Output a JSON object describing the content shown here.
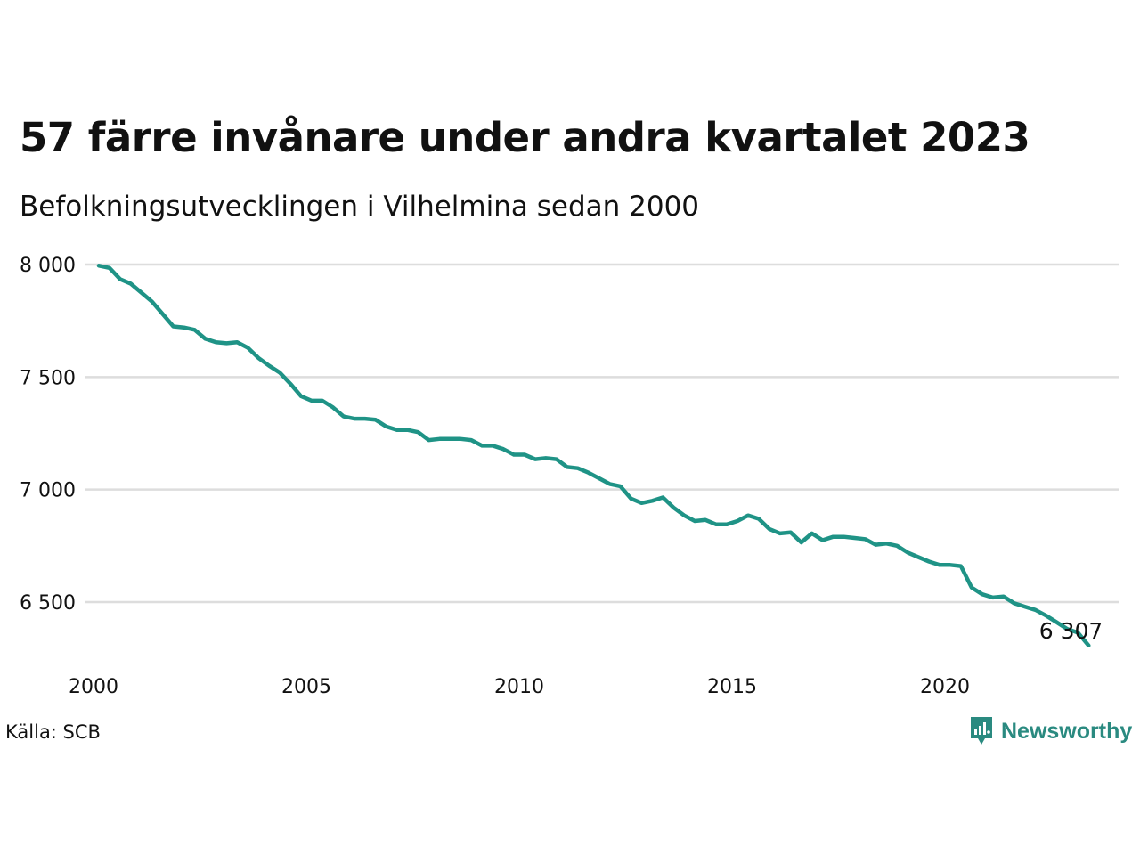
{
  "header": {
    "title": "57 färre invånare under andra kvartalet 2023",
    "subtitle": "Befolkningsutvecklingen i Vilhelmina sedan 2000"
  },
  "footer": {
    "source": "Källa: SCB",
    "brand": "Newsworthy"
  },
  "colors": {
    "line": "#1f9386",
    "grid": "#dddddd",
    "brand": "#2a8a80"
  },
  "chart_data": {
    "type": "line",
    "x_axis": {
      "type": "time",
      "min": 2000,
      "max": 2024,
      "ticks": [
        "2000",
        "2005",
        "2010",
        "2015",
        "2020"
      ]
    },
    "y_axis": {
      "min": 6300,
      "max": 8000,
      "ticks": [
        8000,
        7500,
        7000,
        6500
      ],
      "tick_labels": [
        "8 000",
        "7 500",
        "7 000",
        "6 500"
      ]
    },
    "grid": "horizontal",
    "end_label": "6 307",
    "series": [
      {
        "x": [
          "2000-Q1",
          "2000-Q2",
          "2000-Q3",
          "2000-Q4",
          "2001-Q1",
          "2001-Q2",
          "2001-Q3",
          "2001-Q4",
          "2002-Q1",
          "2002-Q2",
          "2002-Q3",
          "2002-Q4",
          "2003-Q1",
          "2003-Q2",
          "2003-Q3",
          "2003-Q4",
          "2004-Q1",
          "2004-Q2",
          "2004-Q3",
          "2004-Q4",
          "2005-Q1",
          "2005-Q2",
          "2005-Q3",
          "2005-Q4",
          "2006-Q1",
          "2006-Q2",
          "2006-Q3",
          "2006-Q4",
          "2007-Q1",
          "2007-Q2",
          "2007-Q3",
          "2007-Q4",
          "2008-Q1",
          "2008-Q2",
          "2008-Q3",
          "2008-Q4",
          "2009-Q1",
          "2009-Q2",
          "2009-Q3",
          "2009-Q4",
          "2010-Q1",
          "2010-Q2",
          "2010-Q3",
          "2010-Q4",
          "2011-Q1",
          "2011-Q2",
          "2011-Q3",
          "2011-Q4",
          "2012-Q1",
          "2012-Q2",
          "2012-Q3",
          "2012-Q4",
          "2013-Q1",
          "2013-Q2",
          "2013-Q3",
          "2013-Q4",
          "2014-Q1",
          "2014-Q2",
          "2014-Q3",
          "2014-Q4",
          "2015-Q1",
          "2015-Q2",
          "2015-Q3",
          "2015-Q4",
          "2016-Q1",
          "2016-Q2",
          "2016-Q3",
          "2016-Q4",
          "2017-Q1",
          "2017-Q2",
          "2017-Q3",
          "2017-Q4",
          "2018-Q1",
          "2018-Q2",
          "2018-Q3",
          "2018-Q4",
          "2019-Q1",
          "2019-Q2",
          "2019-Q3",
          "2019-Q4",
          "2020-Q1",
          "2020-Q2",
          "2020-Q3",
          "2020-Q4",
          "2021-Q1",
          "2021-Q2",
          "2021-Q3",
          "2021-Q4",
          "2022-Q1",
          "2022-Q2",
          "2022-Q3",
          "2022-Q4",
          "2023-Q1",
          "2023-Q2"
        ],
        "values": [
          7995,
          7985,
          7935,
          7915,
          7875,
          7835,
          7780,
          7725,
          7720,
          7710,
          7670,
          7655,
          7650,
          7655,
          7630,
          7585,
          7550,
          7520,
          7470,
          7415,
          7395,
          7395,
          7365,
          7325,
          7315,
          7315,
          7310,
          7280,
          7265,
          7265,
          7255,
          7220,
          7225,
          7225,
          7225,
          7220,
          7195,
          7195,
          7180,
          7155,
          7155,
          7135,
          7140,
          7135,
          7100,
          7095,
          7075,
          7050,
          7025,
          7015,
          6960,
          6940,
          6950,
          6965,
          6920,
          6885,
          6860,
          6865,
          6845,
          6845,
          6860,
          6885,
          6870,
          6825,
          6805,
          6810,
          6765,
          6805,
          6775,
          6790,
          6790,
          6785,
          6780,
          6755,
          6760,
          6750,
          6720,
          6700,
          6680,
          6665,
          6665,
          6660,
          6565,
          6535,
          6520,
          6525,
          6495,
          6480,
          6465,
          6440,
          6410,
          6380,
          6364,
          6307
        ]
      }
    ]
  }
}
